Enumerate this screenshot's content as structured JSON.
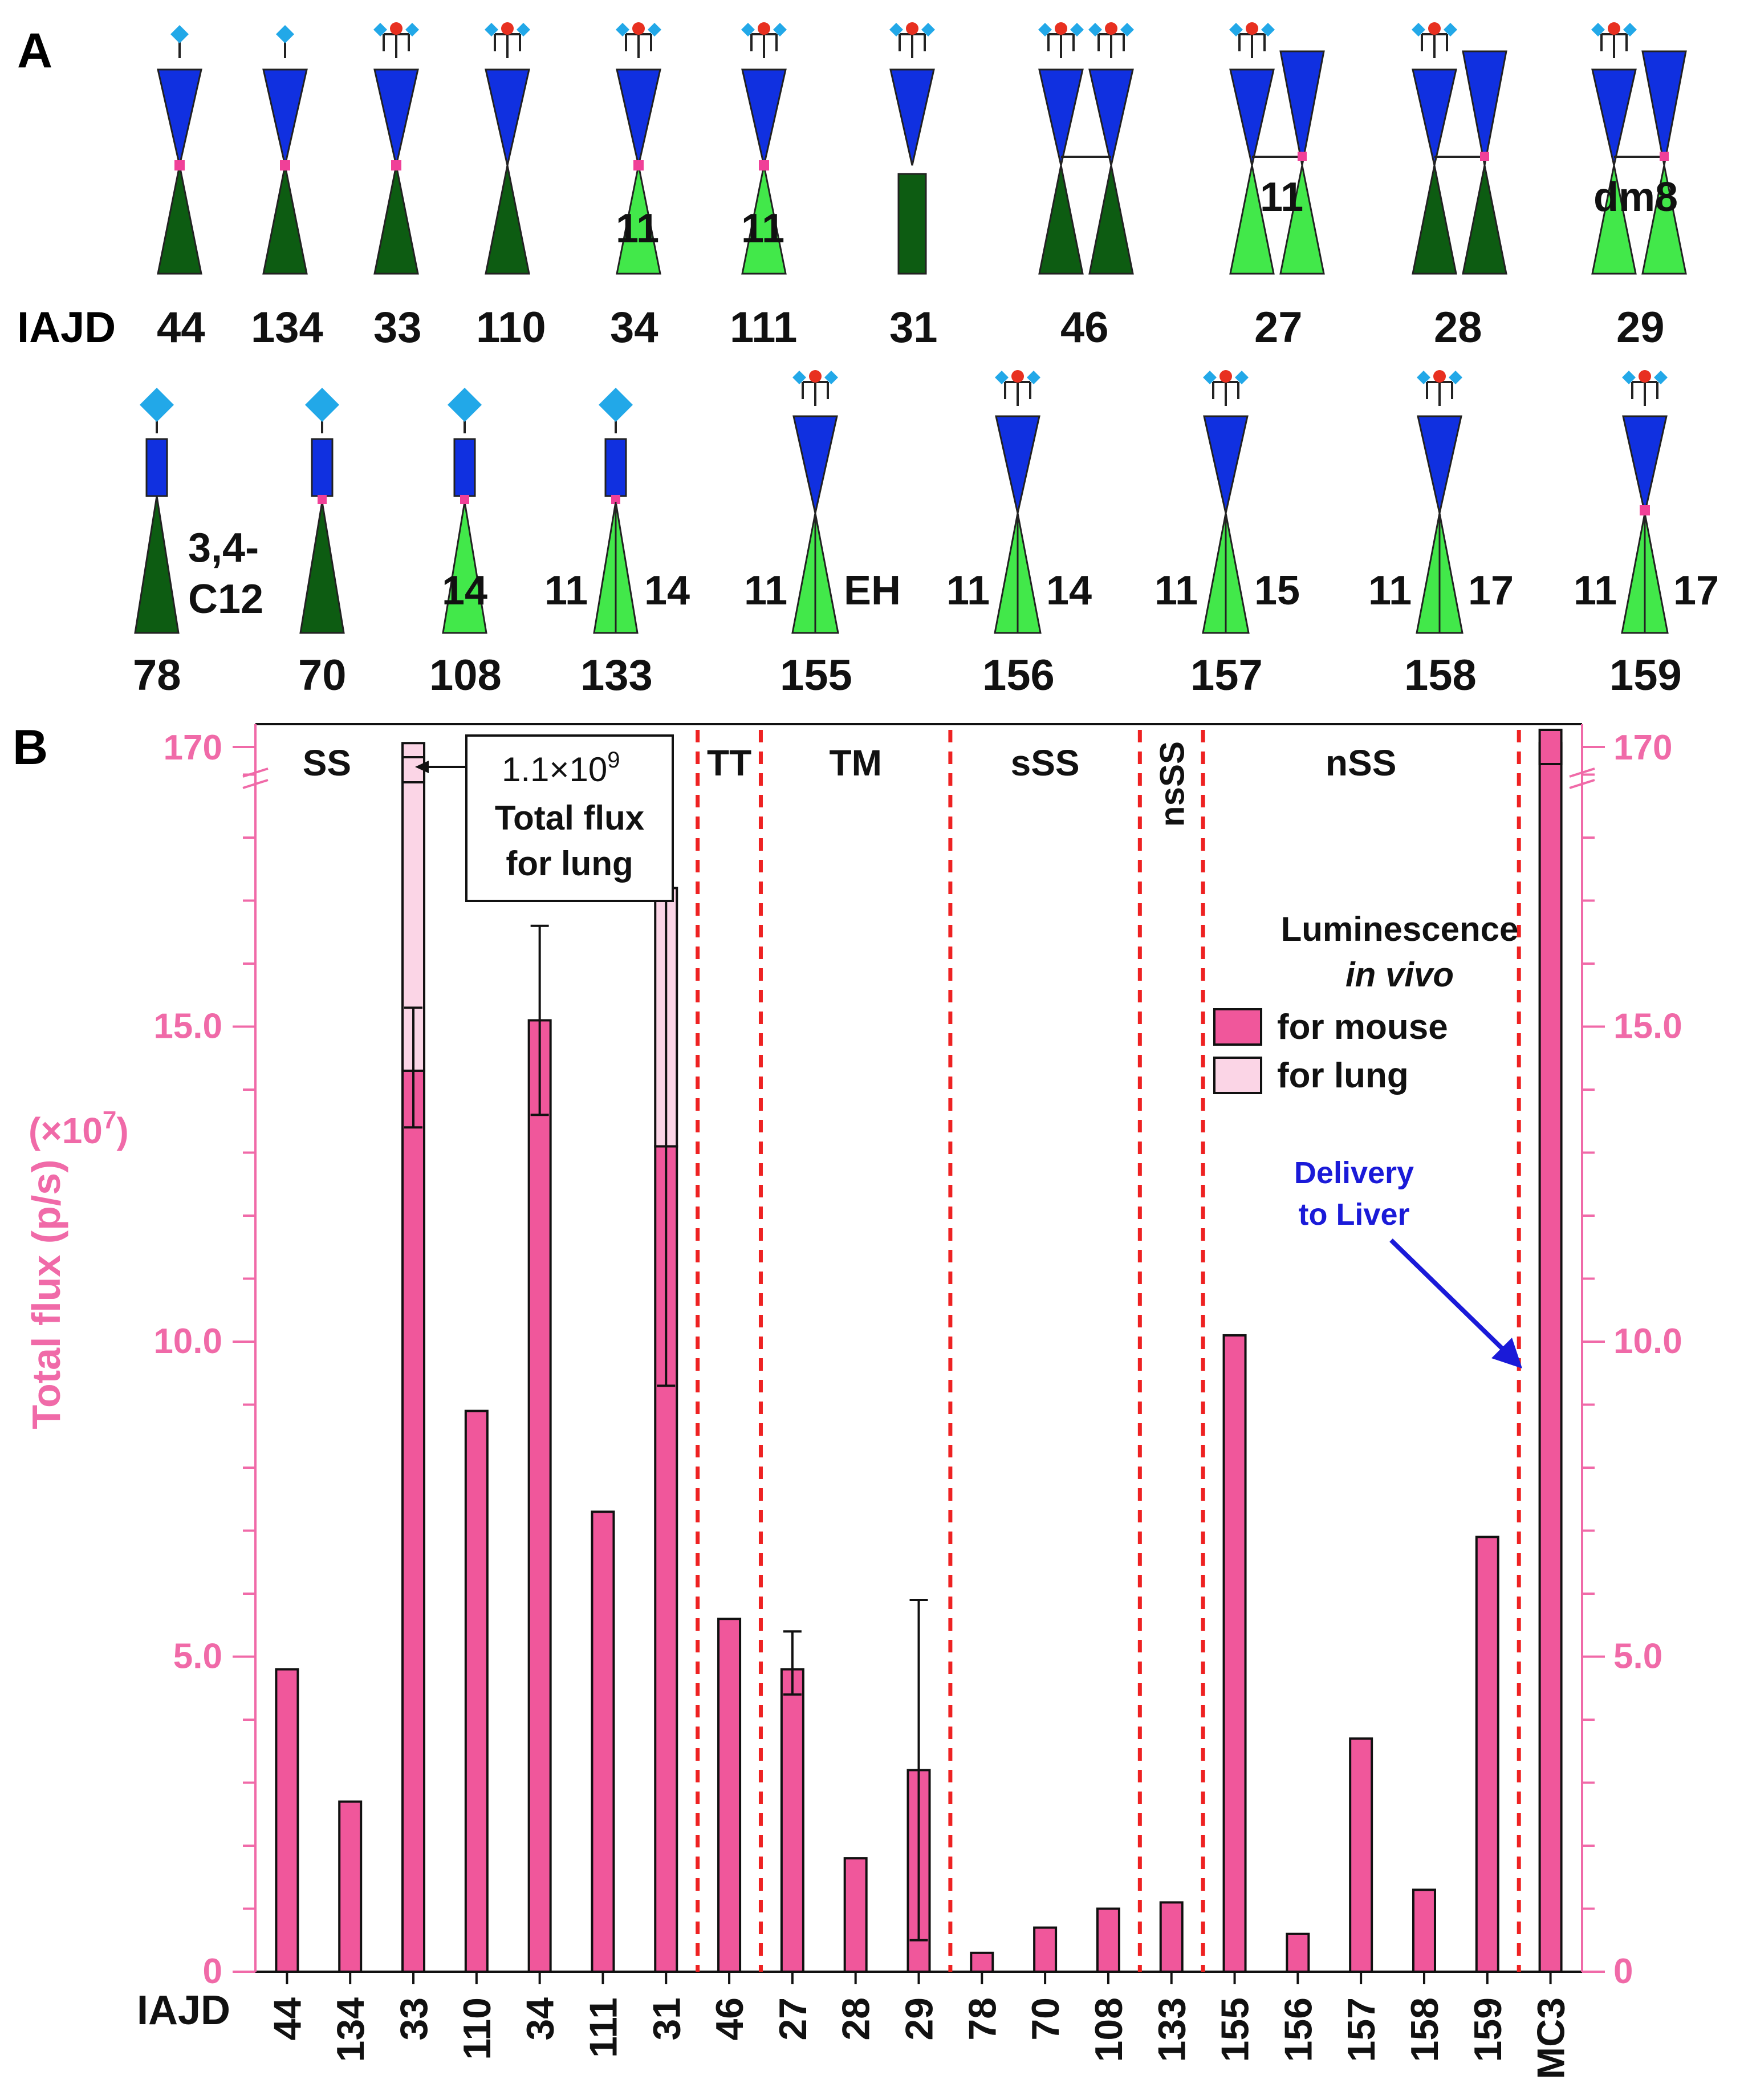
{
  "panel_a": {
    "label": "A",
    "prefix": "IAJD",
    "row1": [
      {
        "id": "44",
        "type": "single_ss",
        "tail": "dark",
        "inner": ""
      },
      {
        "id": "134",
        "type": "single_ss",
        "tail": "dark",
        "inner": ""
      },
      {
        "id": "33",
        "type": "tri_ss",
        "tail": "dark",
        "inner": ""
      },
      {
        "id": "110",
        "type": "tri",
        "tail": "dark",
        "inner": ""
      },
      {
        "id": "34",
        "type": "tri_ss",
        "tail": "light",
        "inner": "11"
      },
      {
        "id": "111",
        "type": "tri_ss",
        "tail": "light",
        "inner": "11"
      },
      {
        "id": "31",
        "type": "tri_rect",
        "tail": "dark",
        "inner": ""
      },
      {
        "id": "46",
        "type": "dimer",
        "tail": "dark",
        "inner": ""
      },
      {
        "id": "27",
        "type": "dimer_ss",
        "tail": "light",
        "inner": "11"
      },
      {
        "id": "28",
        "type": "dimer_ss",
        "tail": "dark",
        "inner": ""
      },
      {
        "id": "29",
        "type": "dimer_ss",
        "tail": "light",
        "inner": "dm8"
      }
    ],
    "row2": [
      {
        "id": "78",
        "type": "rect_single",
        "tail": "dark",
        "left": "",
        "right": "3,4-\nC12"
      },
      {
        "id": "70",
        "type": "rect_single_ss",
        "tail": "dark",
        "left": "",
        "right": ""
      },
      {
        "id": "108",
        "type": "rect_single_ss",
        "tail": "light",
        "left": "",
        "right": "14"
      },
      {
        "id": "133",
        "type": "rect_single_split",
        "tail": "light",
        "left": "11",
        "right": "14"
      },
      {
        "id": "155",
        "type": "tri_split",
        "tail": "light",
        "left": "11",
        "right": "EH"
      },
      {
        "id": "156",
        "type": "tri_split",
        "tail": "light",
        "left": "11",
        "right": "14"
      },
      {
        "id": "157",
        "type": "tri_split",
        "tail": "light",
        "left": "11",
        "right": "15"
      },
      {
        "id": "158",
        "type": "tri_split",
        "tail": "light",
        "left": "11",
        "right": "17"
      },
      {
        "id": "159",
        "type": "tri_split_ss",
        "tail": "light",
        "left": "11",
        "right": "17"
      }
    ]
  },
  "chart_data": {
    "type": "bar",
    "panel_label": "B",
    "ylabel": "Total flux (p/s)",
    "yunit": "(×10",
    "yunit_exp": "7",
    "yunit_close": ")",
    "xlabel_prefix": "IAJD",
    "ylim_lower": [
      0,
      19.5
    ],
    "break_top_value": 170,
    "y_ticks": [
      {
        "value": 0,
        "label": "0"
      },
      {
        "value": 5,
        "label": "5.0"
      },
      {
        "value": 10,
        "label": "10.0"
      },
      {
        "value": 15,
        "label": "15.0"
      }
    ],
    "top_tick_label": "170",
    "categories": [
      "44",
      "134",
      "33",
      "110",
      "34",
      "111",
      "31",
      "46",
      "27",
      "28",
      "29",
      "78",
      "70",
      "108",
      "133",
      "155",
      "156",
      "157",
      "158",
      "159",
      "MC3"
    ],
    "series": [
      {
        "name": "for mouse",
        "color": "#f0579b",
        "values": [
          4.8,
          2.7,
          14.3,
          8.9,
          15.1,
          7.3,
          13.1,
          5.6,
          4.8,
          1.8,
          3.2,
          0.3,
          0.7,
          1.0,
          1.1,
          10.1,
          0.6,
          3.7,
          1.3,
          6.9,
          170
        ]
      },
      {
        "name": "for lung",
        "color": "#fbd5e6",
        "values": [
          null,
          null,
          110,
          null,
          null,
          null,
          17.2,
          null,
          null,
          null,
          null,
          null,
          null,
          null,
          null,
          null,
          null,
          null,
          null,
          null,
          null
        ]
      }
    ],
    "error_bars": [
      {
        "index": 2,
        "low": 13.4,
        "high": 15.3
      },
      {
        "index": 4,
        "low": 13.6,
        "high": 16.6
      },
      {
        "index": 6,
        "low": 9.3,
        "high": 17.2
      },
      {
        "index": 8,
        "low": 4.4,
        "high": 5.4
      },
      {
        "index": 10,
        "low": 0.5,
        "high": 5.9
      }
    ],
    "groups": [
      {
        "label": "SS",
        "vertical": false,
        "from": 0,
        "to": 6
      },
      {
        "label": "TT",
        "vertical": false,
        "from": 7,
        "to": 7
      },
      {
        "label": "TM",
        "vertical": false,
        "from": 8,
        "to": 10
      },
      {
        "label": "sSS",
        "vertical": false,
        "from": 11,
        "to": 13
      },
      {
        "label": "nsSS",
        "vertical": true,
        "from": 14,
        "to": 14
      },
      {
        "label": "nSS",
        "vertical": false,
        "from": 15,
        "to": 19
      }
    ],
    "annotation_box": {
      "line1": "1.1×10",
      "line1_exp": "9",
      "line2": "Total flux",
      "line3": "for lung"
    },
    "legend": {
      "title1": "Luminescence",
      "title2": "in vivo",
      "entry1": "for mouse",
      "entry2": "for lung"
    },
    "liver_annotation": {
      "line1": "Delivery",
      "line2": "to Liver",
      "color": "#1a1ad8"
    },
    "colors": {
      "pink": "#f0579b",
      "light_pink": "#fbd5e6",
      "axis_pink": "#f06aa8",
      "red_dash": "#ee2222",
      "blue": "#1a1ad8",
      "dark_green": "#0d5c12",
      "light_green": "#42e84a",
      "head_blue": "#1030e0",
      "cyan": "#22a8e8",
      "red_dot": "#e83020",
      "magenta_dot": "#f04098"
    }
  }
}
